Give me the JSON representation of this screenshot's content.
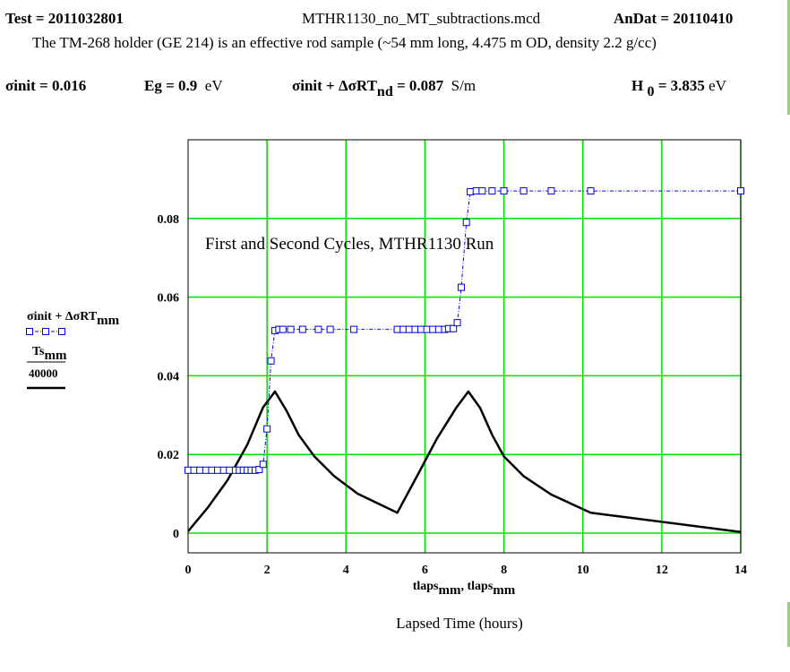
{
  "header": {
    "test_label": "Test = ",
    "test_value": "2011032801",
    "filename": "MTHR1130_no_MT_subtractions.mcd",
    "andat_label": "AnDat = ",
    "andat_value": "20110410",
    "description": "The TM-268 holder (GE 214)  is an effective rod sample (~54 mm long, 4.475 m OD, density 2.2 g/cc)"
  },
  "params": {
    "sigma_init_label": "σinit = ",
    "sigma_init_value": "0.016",
    "eg_label": "Eg = ",
    "eg_value": "0.9",
    "eg_unit": "eV",
    "sum_label_a": "σinit + ΔσRT",
    "sum_label_sub": "nd",
    "sum_label_eq": " = ",
    "sum_value": "0.087",
    "sum_unit": "S/m",
    "h0_label_a": "H",
    "h0_label_sub": "0",
    "h0_label_eq": " = ",
    "h0_value": "3.835",
    "h0_unit": "eV"
  },
  "colors": {
    "grid": "#00e000",
    "series_blue": "#0000e6",
    "series_black": "#000000",
    "edge_bar": "#9bd07a"
  },
  "chart_data": {
    "type": "line",
    "annotation": "First and Second Cycles, MTHR1130  Run",
    "xlabel_main": "tlaps",
    "xlabel_sub": "mm",
    "xlabel_sep": ", ",
    "xlabel_caption": "Lapsed Time (hours)",
    "legend": {
      "series1_main": "σinit + ΔσRT",
      "series1_sub": "mm",
      "series2_num_main": "Ts",
      "series2_num_sub": "mm",
      "series2_den": "40000"
    },
    "xlim": [
      0,
      14
    ],
    "ylim": [
      -0.005,
      0.1
    ],
    "x_ticks": [
      0,
      2,
      4,
      6,
      8,
      10,
      12,
      14
    ],
    "y_ticks": [
      0,
      0.02,
      0.04,
      0.06,
      0.08
    ],
    "y_tick_labels": [
      "0",
      "0.02",
      "0.04",
      "0.06",
      "0.08"
    ],
    "series": [
      {
        "name": "σinit + ΔσRT_mm",
        "style": "dash-dot line with open square markers",
        "x": [
          0,
          0.15,
          0.3,
          0.45,
          0.6,
          0.75,
          0.9,
          1.05,
          1.2,
          1.3,
          1.4,
          1.5,
          1.6,
          1.7,
          1.8,
          1.9,
          2.0,
          2.1,
          2.2,
          2.3,
          2.4,
          2.6,
          2.9,
          3.3,
          3.6,
          4.2,
          5.3,
          5.45,
          5.6,
          5.75,
          5.9,
          6.05,
          6.2,
          6.35,
          6.5,
          6.6,
          6.72,
          6.82,
          6.92,
          7.05,
          7.15,
          7.3,
          7.45,
          7.7,
          8.0,
          8.5,
          9.2,
          10.2,
          14.0
        ],
        "values": [
          0.016,
          0.016,
          0.016,
          0.016,
          0.016,
          0.016,
          0.016,
          0.016,
          0.016,
          0.016,
          0.016,
          0.016,
          0.016,
          0.016,
          0.0162,
          0.0175,
          0.0265,
          0.0438,
          0.0515,
          0.0518,
          0.0518,
          0.0518,
          0.0518,
          0.0518,
          0.0518,
          0.0518,
          0.0518,
          0.0518,
          0.0518,
          0.0518,
          0.0518,
          0.0518,
          0.0518,
          0.0518,
          0.0518,
          0.052,
          0.052,
          0.0535,
          0.0625,
          0.079,
          0.0868,
          0.087,
          0.087,
          0.087,
          0.087,
          0.087,
          0.087,
          0.087,
          0.087
        ]
      },
      {
        "name": "Ts_mm / 40000",
        "style": "solid thick black line",
        "x": [
          0,
          0.5,
          1.0,
          1.5,
          1.9,
          2.2,
          2.5,
          2.8,
          3.2,
          3.7,
          4.3,
          5.3,
          5.8,
          6.3,
          6.8,
          7.1,
          7.4,
          7.7,
          8.0,
          8.5,
          9.2,
          10.2,
          14.0
        ],
        "values": [
          0.0005,
          0.0065,
          0.0135,
          0.0225,
          0.032,
          0.036,
          0.031,
          0.025,
          0.0195,
          0.0145,
          0.01,
          0.0052,
          0.0145,
          0.024,
          0.032,
          0.036,
          0.0318,
          0.025,
          0.0195,
          0.0145,
          0.0098,
          0.0052,
          0.0003
        ]
      }
    ]
  }
}
